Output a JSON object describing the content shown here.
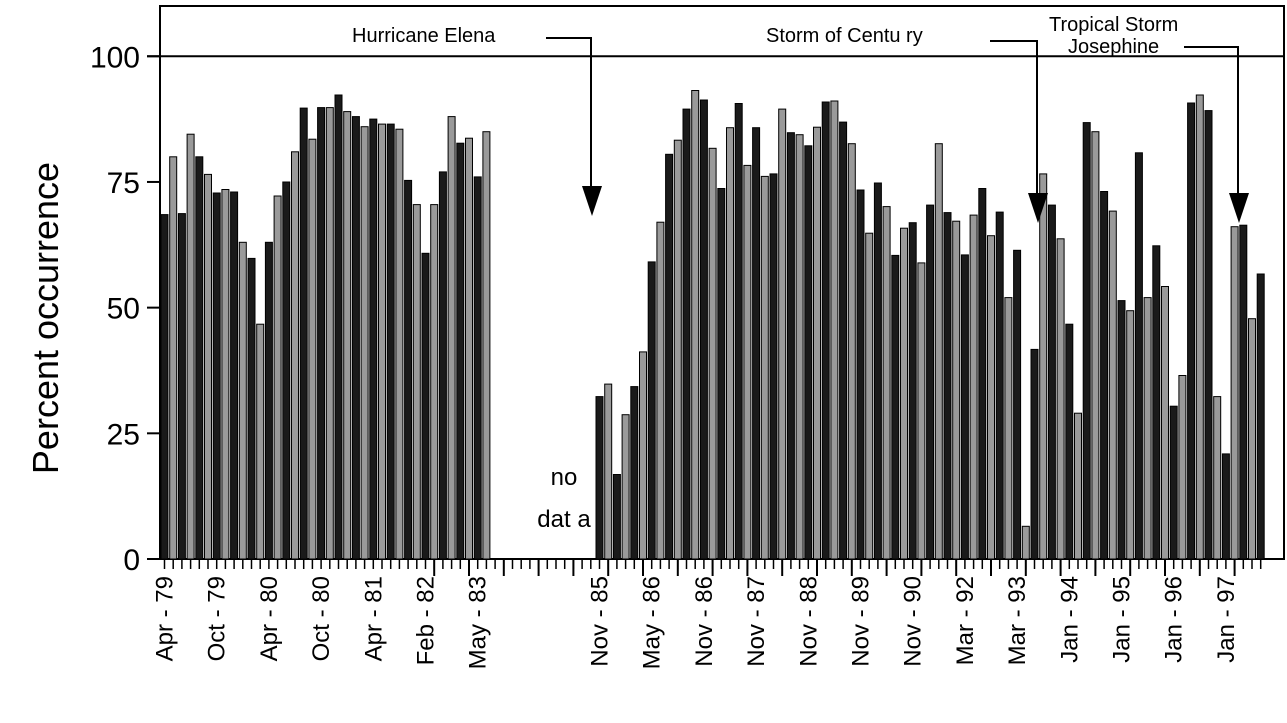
{
  "chart_data": {
    "type": "bar",
    "ylabel": "Percent occurrence",
    "ylim": [
      0,
      110
    ],
    "yticks": [
      "0",
      "25",
      "50",
      "75",
      "100"
    ],
    "reference_line": 100,
    "period_ticks": 4,
    "first_tick_index": 31,
    "x_tick_labels": [
      {
        "label": "Apr - 79",
        "index": 0
      },
      {
        "label": "Oct - 79",
        "index": 6
      },
      {
        "label": "Apr - 80",
        "index": 12
      },
      {
        "label": "Oct - 80",
        "index": 18
      },
      {
        "label": "Apr - 81",
        "index": 24
      },
      {
        "label": "Feb - 82",
        "index": 30
      },
      {
        "label": "May - 83",
        "index": 36
      },
      {
        "label": "Nov - 85",
        "index": 50
      },
      {
        "label": "May - 86",
        "index": 56
      },
      {
        "label": "Nov - 86",
        "index": 62
      },
      {
        "label": "Nov - 87",
        "index": 68
      },
      {
        "label": "Nov - 88",
        "index": 74
      },
      {
        "label": "Nov - 89",
        "index": 80
      },
      {
        "label": "Nov - 90",
        "index": 86
      },
      {
        "label": "Mar - 92",
        "index": 92
      },
      {
        "label": "Mar - 93",
        "index": 98
      },
      {
        "label": "Jan - 94",
        "index": 104
      },
      {
        "label": "Jan - 95",
        "index": 110
      },
      {
        "label": "Jan - 96",
        "index": 116
      },
      {
        "label": "Jan - 97",
        "index": 122
      }
    ],
    "values": [
      68.5,
      80.0,
      68.7,
      84.5,
      80.0,
      76.5,
      72.8,
      73.5,
      73.0,
      63.0,
      59.8,
      46.7,
      63.0,
      72.2,
      75.0,
      81.0,
      89.7,
      83.5,
      89.8,
      89.8,
      92.3,
      89.0,
      88.0,
      86.0,
      87.5,
      86.5,
      86.5,
      85.5,
      75.3,
      70.5,
      60.8,
      70.5,
      77.0,
      88.0,
      82.7,
      83.7,
      76.0,
      85.0,
      null,
      null,
      null,
      null,
      null,
      null,
      null,
      null,
      null,
      null,
      null,
      null,
      32.3,
      34.8,
      16.8,
      28.7,
      34.3,
      41.2,
      59.1,
      67.0,
      80.5,
      83.3,
      89.5,
      93.2,
      91.3,
      81.7,
      73.7,
      85.8,
      90.6,
      78.3,
      85.8,
      76.1,
      76.6,
      89.5,
      84.8,
      84.4,
      82.2,
      85.9,
      90.9,
      91.1,
      86.9,
      82.6,
      73.4,
      64.8,
      74.8,
      70.1,
      60.4,
      65.8,
      66.9,
      58.9,
      70.4,
      82.6,
      68.9,
      67.2,
      60.5,
      68.4,
      73.7,
      64.3,
      69.0,
      52.0,
      61.4,
      6.5,
      41.7,
      76.6,
      70.4,
      63.7,
      46.7,
      29.0,
      86.8,
      85.0,
      73.1,
      69.2,
      51.4,
      49.4,
      80.8,
      52.0,
      62.3,
      54.2,
      30.4,
      36.5,
      90.7,
      92.3,
      89.2,
      32.3,
      20.9,
      66.1,
      66.4,
      47.8,
      56.7
    ],
    "no_data_label": [
      "no",
      "dat a"
    ],
    "annotations": [
      {
        "text": "Hurricane Elena",
        "index": 46
      },
      {
        "text": "Storm of Centu ry",
        "index": 96
      },
      {
        "text": "Tropical  Storm",
        "index": 118
      },
      {
        "text": "Josephine",
        "index": 118
      }
    ],
    "grid": false,
    "legend": "none",
    "colors": {
      "dark": "#1a1a1a",
      "light": "#9a9a9a",
      "axis": "#000000"
    }
  }
}
